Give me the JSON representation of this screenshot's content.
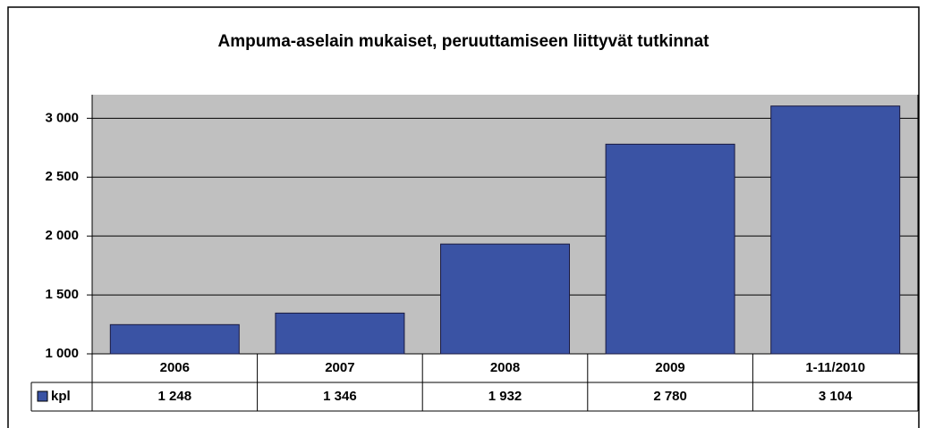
{
  "chart_data": {
    "type": "bar",
    "title": "Ampuma-aselain mukaiset, peruuttamiseen liittyvät tutkinnat",
    "categories": [
      "2006",
      "2007",
      "2008",
      "2009",
      "1-11/2010"
    ],
    "series": [
      {
        "name": "kpl",
        "color": "#3a53a4",
        "values": [
          1248,
          1346,
          1932,
          2780,
          3104
        ],
        "value_labels": [
          "1 248",
          "1 346",
          "1 932",
          "2 780",
          "3 104"
        ]
      }
    ],
    "ylim": [
      1000,
      3200
    ],
    "yticks": [
      {
        "value": 1000,
        "label": "1 000"
      },
      {
        "value": 1500,
        "label": "1 500"
      },
      {
        "value": 2000,
        "label": "2 000"
      },
      {
        "value": 2500,
        "label": "2 500"
      },
      {
        "value": 3000,
        "label": "3 000"
      }
    ],
    "grid": true
  }
}
